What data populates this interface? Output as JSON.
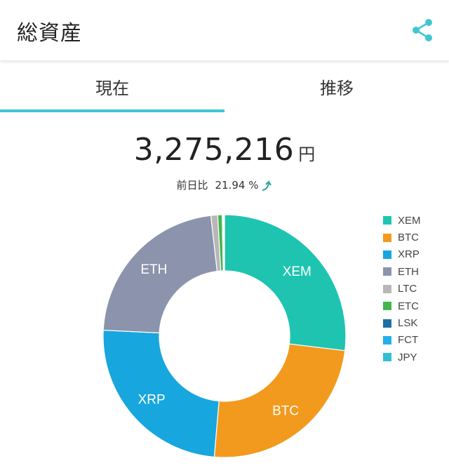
{
  "header": {
    "title": "総資産",
    "share_icon": "share-icon"
  },
  "tabs": [
    {
      "label": "現在",
      "active": true
    },
    {
      "label": "推移",
      "active": false
    }
  ],
  "summary": {
    "total_value": "3,275,216",
    "unit": "円",
    "change_label": "前日比",
    "change_value": "21.94 %",
    "trend_icon": "trend-up-icon",
    "trend_color": "#26a69a"
  },
  "colors": {
    "accent": "#3fc7d1"
  },
  "chart_data": {
    "type": "pie",
    "categories": [
      "XEM",
      "BTC",
      "XRP",
      "ETH",
      "LTC",
      "ETC",
      "LSK",
      "FCT",
      "JPY"
    ],
    "values": [
      27.0,
      24.5,
      24.5,
      22.5,
      0.9,
      0.6,
      0.1,
      0.1,
      0.1
    ],
    "colors": [
      "#1fc4b0",
      "#f29a1e",
      "#17a6de",
      "#8c93ad",
      "#b7b7b7",
      "#43b54f",
      "#1d6fa3",
      "#23b0ea",
      "#2fc0d2"
    ],
    "slice_labels": [
      "XEM",
      "BTC",
      "XRP",
      "ETH",
      "",
      "",
      "",
      "",
      ""
    ],
    "legend": [
      "XEM",
      "BTC",
      "XRP",
      "ETH",
      "LTC",
      "ETC",
      "LSK",
      "FCT",
      "JPY"
    ],
    "legend_placement": "right",
    "donut": true
  }
}
